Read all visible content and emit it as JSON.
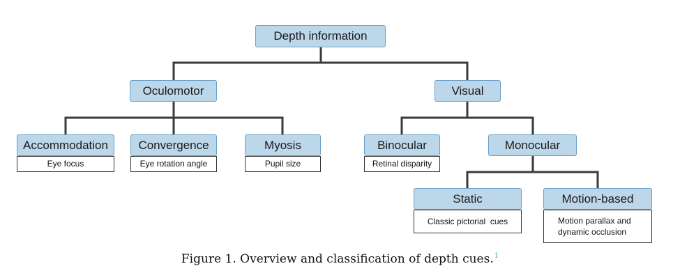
{
  "nodes": {
    "depth_information": "Depth information",
    "oculomotor": "Oculomotor",
    "visual": "Visual",
    "accommodation": "Accommodation",
    "convergence": "Convergence",
    "myosis": "Myosis",
    "binocular": "Binocular",
    "monocular": "Monocular",
    "static": "Static",
    "motion_based": "Motion-based"
  },
  "descriptions": {
    "accommodation": "Eye focus",
    "convergence": "Eye rotation angle",
    "myosis": "Pupil size",
    "binocular": "Retinal disparity",
    "static": "Classic pictorial  cues",
    "motion_based_line1": "Motion parallax and",
    "motion_based_line2": "dynamic occlusion"
  },
  "caption": {
    "text": "Figure 1. Overview and classification of depth cues.",
    "footnote": "1"
  },
  "colors": {
    "node_fill": "#bcd6ea",
    "node_border": "#6a9fc8",
    "connector": "#3a3a3a",
    "footnote": "#2ecc40"
  }
}
